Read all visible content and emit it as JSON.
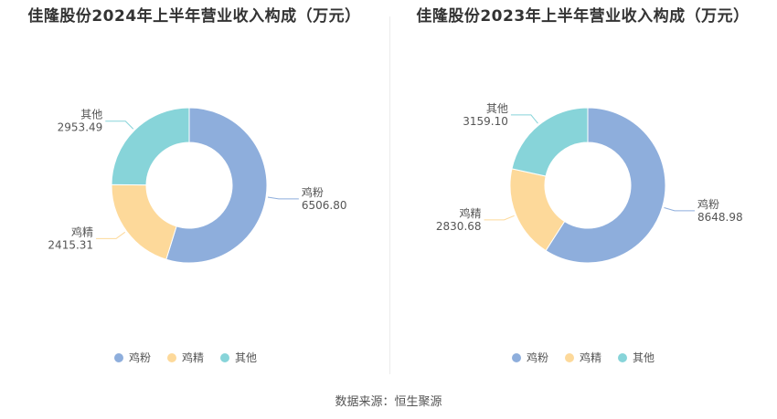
{
  "source": "数据来源：恒生聚源",
  "chart_data": [
    {
      "type": "pie",
      "title": "佳隆股份2024年上半年营业收入构成（万元）",
      "categories": [
        "鸡粉",
        "鸡精",
        "其他"
      ],
      "values": [
        6506.8,
        2415.31,
        2953.49
      ],
      "value_labels": [
        "6506.80",
        "2415.31",
        "2953.49"
      ],
      "colors": [
        "#8eaedc",
        "#fdd99a",
        "#87d4d9"
      ],
      "donut": true,
      "legend": "bottom"
    },
    {
      "type": "pie",
      "title": "佳隆股份2023年上半年营业收入构成（万元）",
      "categories": [
        "鸡粉",
        "鸡精",
        "其他"
      ],
      "values": [
        8648.98,
        2830.68,
        3159.1
      ],
      "value_labels": [
        "8648.98",
        "2830.68",
        "3159.10"
      ],
      "colors": [
        "#8eaedc",
        "#fdd99a",
        "#87d4d9"
      ],
      "donut": true,
      "legend": "bottom"
    }
  ]
}
